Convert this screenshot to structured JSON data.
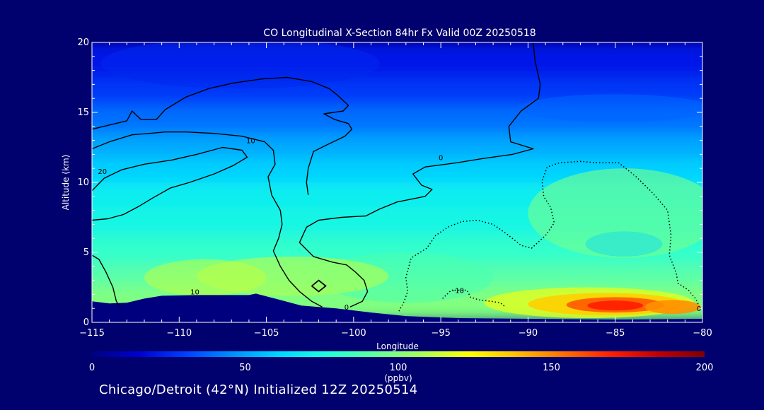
{
  "chart_data": {
    "type": "heatmap",
    "title": "CO Longitudinal X-Section 84hr  Fx Valid 00Z 20250518",
    "xlabel": "Longitude",
    "ylabel": "Altitude (km)",
    "xlim": [
      -115,
      -80
    ],
    "ylim": [
      0,
      20
    ],
    "x_ticks": [
      -115,
      -110,
      -105,
      -100,
      -95,
      -90,
      -85,
      -80
    ],
    "x_tick_labels": [
      "−115",
      "−110",
      "−105",
      "−100",
      "−95",
      "−90",
      "−85",
      "−80"
    ],
    "y_ticks": [
      0,
      5,
      10,
      15,
      20
    ],
    "y_tick_labels": [
      "0",
      "5",
      "10",
      "15",
      "20"
    ],
    "colorbar": {
      "label": "(ppbv)",
      "min": 0,
      "max": 200,
      "ticks": [
        0,
        50,
        100,
        150,
        200
      ],
      "tick_labels": [
        "0",
        "50",
        "100",
        "150",
        "200"
      ],
      "colors": [
        "#00007f",
        "#0000d0",
        "#0040ff",
        "#0090ff",
        "#00d8ff",
        "#20ffd8",
        "#60ff9c",
        "#a8ff58",
        "#ffff00",
        "#ffc000",
        "#ff7000",
        "#ff2000",
        "#c00000",
        "#7f0000"
      ]
    },
    "contour_labels": [
      {
        "text": "10",
        "lon": -109.1,
        "alt": 2.2
      },
      {
        "text": "20",
        "lon": -114.4,
        "alt": 10.8
      },
      {
        "text": "10",
        "lon": -105.9,
        "alt": 13.0
      },
      {
        "text": "0",
        "lon": -95.0,
        "alt": 11.8
      },
      {
        "text": "0",
        "lon": -100.4,
        "alt": 1.1
      },
      {
        "text": "-10",
        "lon": -94.0,
        "alt": 2.3
      },
      {
        "text": "0",
        "lon": -80.2,
        "alt": 1.0
      }
    ],
    "series": [
      {
        "name": "+20 contour",
        "style": "solid",
        "points": [
          [
            -115,
            9.4
          ],
          [
            -114.3,
            10.3
          ],
          [
            -113.3,
            10.9
          ],
          [
            -112,
            11.3
          ],
          [
            -110.4,
            11.6
          ],
          [
            -109,
            12
          ],
          [
            -107.5,
            12.5
          ],
          [
            -106.4,
            12.3
          ],
          [
            -106.1,
            11.8
          ],
          [
            -106.9,
            11.2
          ],
          [
            -108,
            10.6
          ],
          [
            -109.4,
            10
          ],
          [
            -110.5,
            9.6
          ],
          [
            -111.5,
            8.9
          ],
          [
            -112.3,
            8.3
          ],
          [
            -113.2,
            7.7
          ],
          [
            -114.1,
            7.4
          ],
          [
            -115,
            7.3
          ]
        ]
      },
      {
        "name": "+10 contour",
        "style": "solid",
        "points": [
          [
            -115,
            12.4
          ],
          [
            -114,
            12.9
          ],
          [
            -112.7,
            13.4
          ],
          [
            -111.7,
            13.5
          ],
          [
            -110.8,
            13.6
          ],
          [
            -109.6,
            13.6
          ],
          [
            -108,
            13.5
          ],
          [
            -106.4,
            13.3
          ],
          [
            -105.1,
            12.9
          ],
          [
            -104.6,
            12.3
          ],
          [
            -104.5,
            11.3
          ],
          [
            -104.9,
            10.4
          ],
          [
            -104.7,
            9.1
          ],
          [
            -104.2,
            8
          ],
          [
            -104.1,
            7
          ],
          [
            -104.3,
            6
          ],
          [
            -104.6,
            5.1
          ],
          [
            -104.2,
            4
          ],
          [
            -103.7,
            3
          ],
          [
            -103.1,
            2.2
          ],
          [
            -102.4,
            1.5
          ],
          [
            -101.8,
            1.1
          ]
        ]
      },
      {
        "name": "+10 contour (low)",
        "style": "solid",
        "points": [
          [
            -115,
            4.8
          ],
          [
            -114.6,
            4.5
          ],
          [
            -114.2,
            3.6
          ],
          [
            -113.8,
            2.5
          ],
          [
            -113.6,
            1.5
          ],
          [
            -113.4,
            1.1
          ]
        ]
      },
      {
        "name": "0 contour",
        "style": "solid",
        "points": [
          [
            -89.7,
            20
          ],
          [
            -89.6,
            18.7
          ],
          [
            -89.3,
            17
          ],
          [
            -89.4,
            16
          ],
          [
            -90.4,
            15.1
          ],
          [
            -91.1,
            14
          ],
          [
            -91,
            12.9
          ],
          [
            -89.7,
            12.4
          ],
          [
            -90.9,
            12
          ],
          [
            -92.6,
            11.7
          ],
          [
            -94.1,
            11.4
          ],
          [
            -95.9,
            11.1
          ],
          [
            -96.6,
            10.6
          ],
          [
            -96.1,
            9.8
          ],
          [
            -95.5,
            9.5
          ],
          [
            -95.9,
            9
          ],
          [
            -97.5,
            8.6
          ],
          [
            -98.5,
            8.1
          ],
          [
            -99.3,
            7.6
          ],
          [
            -100.7,
            7.5
          ],
          [
            -102,
            7.3
          ],
          [
            -102.7,
            6.8
          ],
          [
            -103.1,
            5.7
          ],
          [
            -102.3,
            4.7
          ],
          [
            -101.2,
            4.3
          ],
          [
            -100.4,
            4.1
          ],
          [
            -99.9,
            3.6
          ],
          [
            -99.4,
            3
          ],
          [
            -99.2,
            2.2
          ],
          [
            -99.5,
            1.5
          ],
          [
            -100.2,
            1.1
          ]
        ]
      },
      {
        "name": "-10 contour",
        "style": "dotted",
        "points": [
          [
            -97.4,
            0.8
          ],
          [
            -97.1,
            1.5
          ],
          [
            -96.9,
            2.2
          ],
          [
            -97,
            3.2
          ],
          [
            -96.7,
            4.6
          ],
          [
            -95.8,
            5.3
          ],
          [
            -95.3,
            6.2
          ],
          [
            -94.6,
            6.8
          ],
          [
            -93.8,
            7.2
          ],
          [
            -92.9,
            7.3
          ],
          [
            -92,
            7
          ],
          [
            -91.2,
            6.3
          ],
          [
            -90.4,
            5.5
          ],
          [
            -89.8,
            5.3
          ],
          [
            -89,
            6.2
          ],
          [
            -88.5,
            7.1
          ],
          [
            -88.7,
            8.2
          ],
          [
            -89.1,
            9
          ],
          [
            -89.2,
            10.1
          ],
          [
            -88.9,
            11.1
          ],
          [
            -88.2,
            11.4
          ],
          [
            -87,
            11.5
          ],
          [
            -86,
            11.4
          ],
          [
            -84.8,
            11.4
          ],
          [
            -84.4,
            11
          ],
          [
            -83.8,
            10.4
          ],
          [
            -82.9,
            9.3
          ],
          [
            -82,
            8
          ],
          [
            -81.8,
            6.2
          ],
          [
            -81.9,
            4.8
          ],
          [
            -81.5,
            3.5
          ],
          [
            -81.4,
            2.8
          ],
          [
            -80.8,
            2.3
          ],
          [
            -80.4,
            1.7
          ],
          [
            -80.2,
            1.2
          ]
        ]
      },
      {
        "name": "-10 contour (inner)",
        "style": "dotted",
        "points": [
          [
            -94.9,
            1.7
          ],
          [
            -94.4,
            2.3
          ],
          [
            -93.5,
            2.3
          ],
          [
            -93.3,
            1.8
          ],
          [
            -92.8,
            1.6
          ],
          [
            -92.1,
            1.5
          ],
          [
            -91.6,
            1.4
          ],
          [
            -91.3,
            1.1
          ]
        ]
      }
    ],
    "upper_region_contours": [
      {
        "name": "upper left contour",
        "style": "solid",
        "points": [
          [
            -115,
            13.8
          ],
          [
            -114,
            14.1
          ],
          [
            -113,
            14.4
          ],
          [
            -112.7,
            15.1
          ],
          [
            -112.2,
            14.5
          ],
          [
            -111.3,
            14.5
          ],
          [
            -110.8,
            15.2
          ],
          [
            -109.6,
            16.1
          ],
          [
            -108.3,
            16.7
          ],
          [
            -106.9,
            17.1
          ],
          [
            -105.2,
            17.4
          ],
          [
            -103.8,
            17.5
          ],
          [
            -102.4,
            17.2
          ],
          [
            -101.4,
            16.7
          ],
          [
            -100.9,
            16.2
          ],
          [
            -100.3,
            15.5
          ],
          [
            -100.6,
            15.1
          ],
          [
            -101.7,
            14.9
          ],
          [
            -101.1,
            14.5
          ],
          [
            -100.3,
            14.2
          ],
          [
            -100.1,
            13.8
          ],
          [
            -100.5,
            13.3
          ],
          [
            -101.5,
            12.7
          ],
          [
            -102.3,
            12.2
          ],
          [
            -102.6,
            11
          ],
          [
            -102.7,
            10
          ],
          [
            -102.6,
            9.1
          ]
        ]
      }
    ]
  },
  "caption": "Chicago/Detroit (42°N) Initialized 12Z 20250514"
}
